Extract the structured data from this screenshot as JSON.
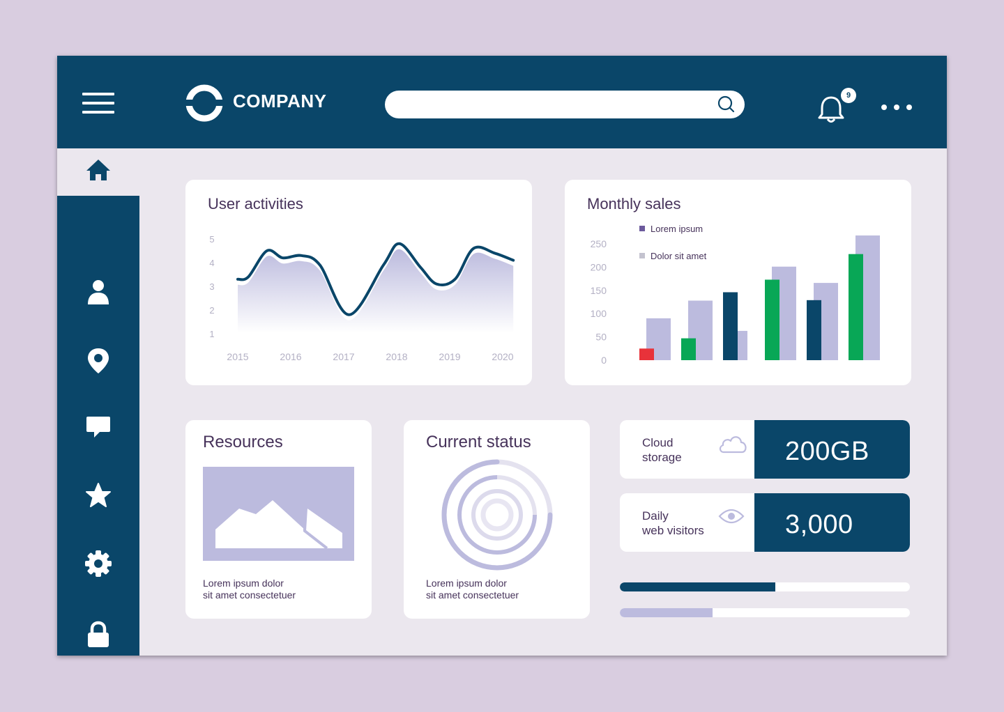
{
  "header": {
    "brand": "COMPANY",
    "search_placeholder": "",
    "notification_count": "9"
  },
  "sidebar": {
    "items": [
      "home-icon",
      "user-icon",
      "location-pin-icon",
      "chat-icon",
      "star-icon",
      "gear-icon",
      "lock-icon"
    ],
    "active": "home-icon"
  },
  "user_activities": {
    "title": "User activities",
    "y_ticks": [
      "5",
      "4",
      "3",
      "2",
      "1"
    ],
    "x_ticks": [
      "2015",
      "2016",
      "2017",
      "2018",
      "2019",
      "2020"
    ]
  },
  "monthly_sales": {
    "title": "Monthly sales",
    "y_ticks": [
      "250",
      "200",
      "150",
      "100",
      "50",
      "0"
    ],
    "legend": [
      "Lorem ipsum",
      "Dolor sit amet"
    ]
  },
  "resources": {
    "title": "Resources",
    "caption_line1": "Lorem ipsum dolor",
    "caption_line2": "sit amet consectetuer"
  },
  "current_status": {
    "title": "Current status",
    "caption_line1": "Lorem ipsum dolor",
    "caption_line2": "sit amet consectetuer"
  },
  "cloud_storage": {
    "label_line1": "Cloud",
    "label_line2": "storage",
    "icon": "cloud-icon",
    "value": "200GB"
  },
  "daily_visitors": {
    "label_line1": "Daily",
    "label_line2": "web visitors",
    "icon": "eye-icon",
    "value": "3,000"
  },
  "progress": {
    "bar1": 0.536,
    "bar2": 0.32
  },
  "colors": {
    "navy": "#0a4669",
    "lavender": "#bcbbde",
    "green": "#08a756",
    "red": "#e8323a",
    "background": "#d9cde0"
  },
  "chart_data": [
    {
      "type": "line",
      "title": "User activities",
      "x": [
        "2015",
        "2016",
        "2017",
        "2018",
        "2019",
        "2020"
      ],
      "ylim": [
        1,
        5
      ],
      "series": [
        {
          "x": [
            2015,
            2015.2,
            2015.55,
            2015.85,
            2016.2,
            2016.55,
            2017.1,
            2017.75,
            2018.05,
            2018.45,
            2018.75,
            2019.1,
            2019.45,
            2019.85,
            2020.2
          ],
          "values": [
            3.3,
            3.4,
            4.5,
            4.2,
            4.3,
            3.9,
            1.8,
            3.9,
            4.8,
            3.8,
            3.1,
            3.3,
            4.6,
            4.4,
            4.1
          ]
        }
      ]
    },
    {
      "type": "bar",
      "title": "Monthly sales",
      "ylim": [
        0,
        275
      ],
      "series": [
        {
          "name": "Lorem ipsum",
          "values": [
            25,
            47,
            146,
            173,
            129,
            228
          ]
        },
        {
          "name": "Dolor sit amet",
          "values": [
            90,
            128,
            63,
            201,
            166,
            268
          ]
        }
      ],
      "front_colors": [
        "#e8323a",
        "#08a756",
        "#0a4669",
        "#08a756",
        "#0a4669",
        "#08a756"
      ]
    }
  ]
}
